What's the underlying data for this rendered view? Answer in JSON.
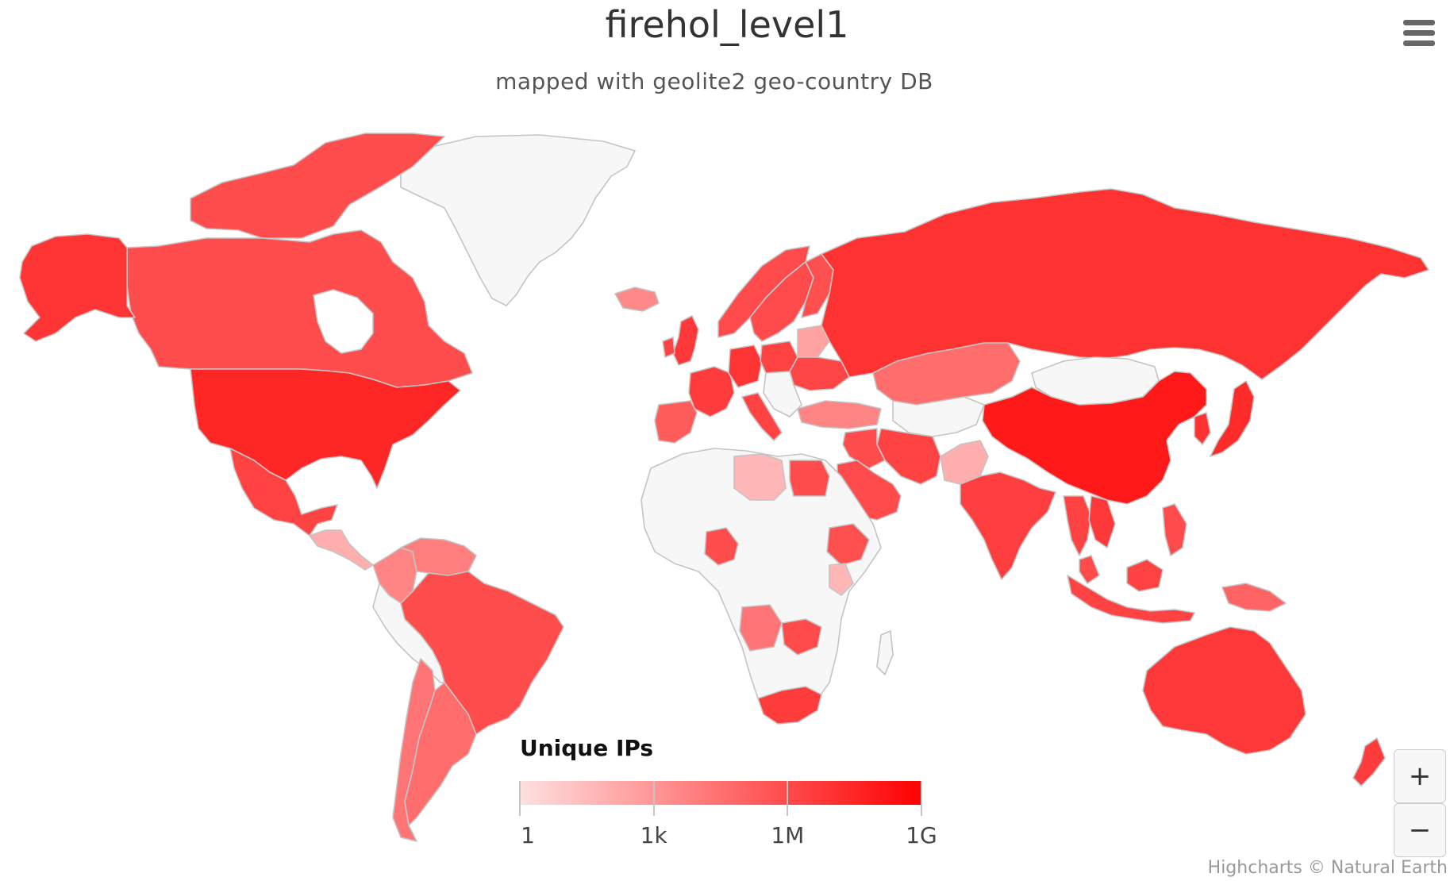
{
  "chart": {
    "title": "firehol_level1",
    "subtitle": "mapped with geolite2 geo-country DB",
    "credits": "Highcharts © Natural Earth"
  },
  "colors": {
    "min": "#ffe0e0",
    "max": "#ff0000",
    "null_fill": "#f7f7f7",
    "border": "#c4c4c4"
  },
  "legend": {
    "title": "Unique IPs",
    "type": "logarithmic",
    "ticks": [
      "1",
      "1k",
      "1M",
      "1G"
    ],
    "tick_values": [
      1,
      1000,
      1000000,
      1000000000
    ],
    "position": "bottom-center"
  },
  "controls": {
    "zoom_in": "+",
    "zoom_out": "−",
    "menu_icon": "hamburger-menu-icon"
  },
  "chart_data": {
    "type": "heatmap",
    "map": "world",
    "metric": "Unique IPs",
    "scale": "logarithmic",
    "range": [
      1,
      1000000000
    ],
    "series": [
      {
        "name": "Unique IPs",
        "values": [
          {
            "region": "Alaska (United States)",
            "value": 8000000
          },
          {
            "region": "Canada",
            "value": 900000
          },
          {
            "region": "United States",
            "value": 30000000
          },
          {
            "region": "Mexico",
            "value": 2000000
          },
          {
            "region": "Central America",
            "value": 100
          },
          {
            "region": "Colombia",
            "value": 5000
          },
          {
            "region": "Venezuela",
            "value": 8000
          },
          {
            "region": "Brazil",
            "value": 800000
          },
          {
            "region": "Argentina",
            "value": 40000
          },
          {
            "region": "Chile",
            "value": 20000
          },
          {
            "region": "Greenland",
            "value": null
          },
          {
            "region": "Iceland",
            "value": 3000
          },
          {
            "region": "Norway",
            "value": 1000000
          },
          {
            "region": "Sweden",
            "value": 1000000
          },
          {
            "region": "Finland",
            "value": 600000
          },
          {
            "region": "United Kingdom",
            "value": 5000000
          },
          {
            "region": "Ireland",
            "value": 2000000
          },
          {
            "region": "France",
            "value": 4000000
          },
          {
            "region": "Spain",
            "value": 200000
          },
          {
            "region": "Portugal",
            "value": 100000
          },
          {
            "region": "Germany",
            "value": 8000000
          },
          {
            "region": "Italy",
            "value": 2000000
          },
          {
            "region": "Poland",
            "value": 2000000
          },
          {
            "region": "Belarus",
            "value": 300
          },
          {
            "region": "Ukraine",
            "value": 1500000
          },
          {
            "region": "Turkey",
            "value": 5000
          },
          {
            "region": "Russia",
            "value": 10000000
          },
          {
            "region": "Kazakhstan",
            "value": 40000
          },
          {
            "region": "Mongolia",
            "value": null
          },
          {
            "region": "China",
            "value": 100000000
          },
          {
            "region": "Japan",
            "value": 20000000
          },
          {
            "region": "South Korea",
            "value": 10000000
          },
          {
            "region": "Iran",
            "value": 2000000
          },
          {
            "region": "Iraq",
            "value": 800000
          },
          {
            "region": "Saudi Arabia",
            "value": 1000000
          },
          {
            "region": "Pakistan",
            "value": 100
          },
          {
            "region": "India",
            "value": 3000000
          },
          {
            "region": "Vietnam",
            "value": 5000000
          },
          {
            "region": "Thailand",
            "value": 2000000
          },
          {
            "region": "Malaysia",
            "value": 1000000
          },
          {
            "region": "Indonesia",
            "value": 2000000
          },
          {
            "region": "Philippines",
            "value": 1000000
          },
          {
            "region": "Papua New Guinea",
            "value": 100000
          },
          {
            "region": "Australia",
            "value": 5000000
          },
          {
            "region": "New Zealand",
            "value": 4000000
          },
          {
            "region": "Libya",
            "value": 50
          },
          {
            "region": "Egypt",
            "value": 900000
          },
          {
            "region": "Nigeria",
            "value": 800000
          },
          {
            "region": "Ethiopia",
            "value": 600000
          },
          {
            "region": "Kenya",
            "value": 50
          },
          {
            "region": "Angola",
            "value": 20000
          },
          {
            "region": "Zambia",
            "value": 1000000
          },
          {
            "region": "Zimbabwe",
            "value": 1000000
          },
          {
            "region": "South Africa",
            "value": 4000000
          }
        ]
      }
    ]
  }
}
